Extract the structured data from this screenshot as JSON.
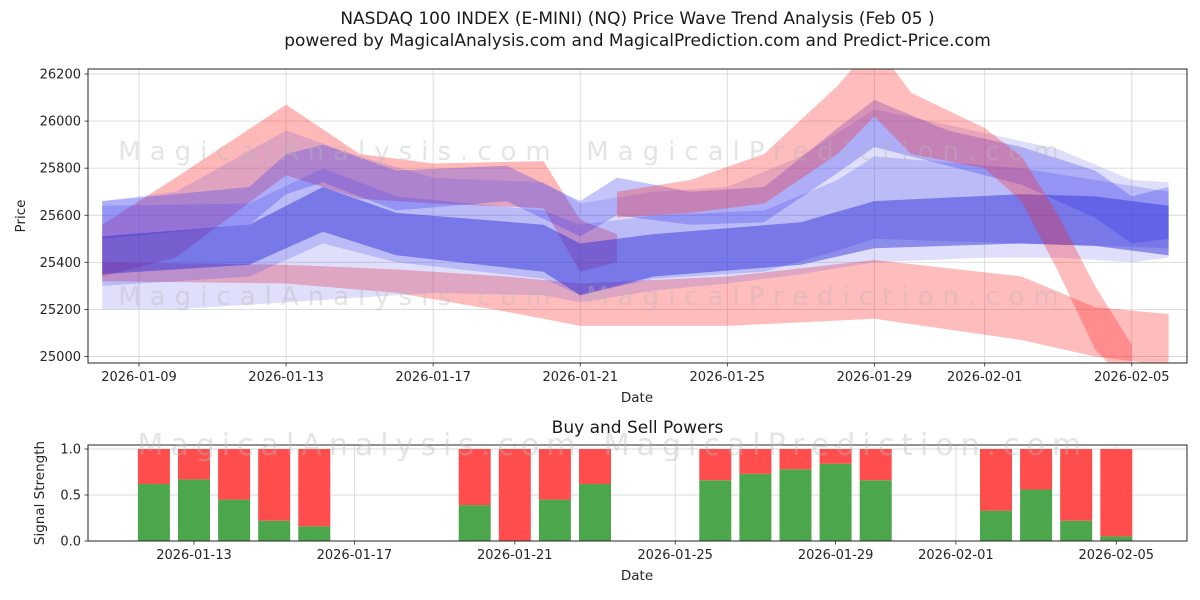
{
  "figure": {
    "title_line1": "NASDAQ 100 INDEX (E-MINI) (NQ) Price Wave Trend Analysis (Feb 05 )",
    "title_line2": "powered by MagicalAnalysis.com and MagicalPrediction.com and Predict-Price.com",
    "background": "#ffffff"
  },
  "watermarks": {
    "texts": [
      "MagicalAnalysis.com",
      "MagicalPrediction.com"
    ],
    "color": "rgba(185,185,185,0.38)"
  },
  "colors": {
    "band_red": "#ff2222",
    "band_blue_light": "#3b3bee",
    "band_blue_dark": "#2828d8",
    "bar_buy_green": "#4ca64c",
    "bar_sell_red": "#ff4d4d",
    "grid": "#d9d9d9",
    "spine": "#262626"
  },
  "chart_data": [
    {
      "type": "area",
      "name": "price-wave-chart",
      "title": "",
      "xlabel": "Date",
      "ylabel": "Price",
      "ylim": [
        24975,
        26225
      ],
      "yticks": [
        25000,
        25200,
        25400,
        25600,
        25800,
        26000,
        26200
      ],
      "xticks": [
        "2026-01-09",
        "2026-01-13",
        "2026-01-17",
        "2026-01-21",
        "2026-01-25",
        "2026-01-29",
        "2026-02-01",
        "2026-02-05"
      ],
      "grid": true,
      "legend": "none",
      "bands": [
        {
          "name": "red-left-peak",
          "color": "#ff2222",
          "opacity": 0.32,
          "points": [
            [
              "2026-01-08",
              25560,
              25340
            ],
            [
              "2026-01-10",
              25760,
              25420
            ],
            [
              "2026-01-13",
              26070,
              25770
            ],
            [
              "2026-01-15",
              25860,
              25670
            ],
            [
              "2026-01-17",
              25820,
              25650
            ],
            [
              "2026-01-20",
              25830,
              25630
            ],
            [
              "2026-01-21",
              25580,
              25360
            ],
            [
              "2026-01-22",
              25520,
              25400
            ]
          ]
        },
        {
          "name": "red-lower-band",
          "color": "#ff2222",
          "opacity": 0.3,
          "points": [
            [
              "2026-01-08",
              25400,
              25320
            ],
            [
              "2026-01-13",
              25390,
              25310
            ],
            [
              "2026-01-16",
              25370,
              25270
            ],
            [
              "2026-01-19",
              25340,
              25190
            ],
            [
              "2026-01-21",
              25310,
              25130
            ],
            [
              "2026-01-25",
              25340,
              25130
            ],
            [
              "2026-01-29",
              25410,
              25160
            ],
            [
              "2026-02-02",
              25340,
              25070
            ],
            [
              "2026-02-04",
              25210,
              25000
            ],
            [
              "2026-02-06",
              25180,
              24960
            ]
          ]
        },
        {
          "name": "blue-envelope",
          "color": "#3b3bee",
          "opacity": 0.16,
          "points": [
            [
              "2026-01-08",
              25660,
              25200
            ],
            [
              "2026-01-10",
              25700,
              25200
            ],
            [
              "2026-01-13",
              25960,
              25230
            ],
            [
              "2026-01-15",
              25850,
              25250
            ],
            [
              "2026-01-17",
              25760,
              25270
            ],
            [
              "2026-01-20",
              25740,
              25260
            ],
            [
              "2026-01-21",
              25650,
              25230
            ],
            [
              "2026-01-23",
              25700,
              25280
            ],
            [
              "2026-01-25",
              25720,
              25310
            ],
            [
              "2026-01-27",
              25850,
              25350
            ],
            [
              "2026-01-29",
              26050,
              25400
            ],
            [
              "2026-02-01",
              25950,
              25420
            ],
            [
              "2026-02-03",
              25880,
              25420
            ],
            [
              "2026-02-05",
              25750,
              25400
            ],
            [
              "2026-02-06",
              25740,
              25420
            ]
          ]
        },
        {
          "name": "blue-mid-band",
          "color": "#3b3bee",
          "opacity": 0.22,
          "points": [
            [
              "2026-01-08",
              25640,
              25300
            ],
            [
              "2026-01-12",
              25650,
              25340
            ],
            [
              "2026-01-14",
              25800,
              25480
            ],
            [
              "2026-01-16",
              25680,
              25400
            ],
            [
              "2026-01-20",
              25620,
              25330
            ],
            [
              "2026-01-21",
              25560,
              25260
            ],
            [
              "2026-01-23",
              25600,
              25330
            ],
            [
              "2026-01-26",
              25620,
              25360
            ],
            [
              "2026-01-28",
              25750,
              25450
            ],
            [
              "2026-01-29",
              25850,
              25500
            ],
            [
              "2026-02-02",
              25800,
              25480
            ],
            [
              "2026-02-06",
              25700,
              25460
            ]
          ]
        },
        {
          "name": "blue-upper-band",
          "color": "#3b3bee",
          "opacity": 0.3,
          "points": [
            [
              "2026-01-08",
              25660,
              25500
            ],
            [
              "2026-01-12",
              25720,
              25560
            ],
            [
              "2026-01-13",
              25860,
              25690
            ],
            [
              "2026-01-14",
              25900,
              25740
            ],
            [
              "2026-01-16",
              25790,
              25620
            ],
            [
              "2026-01-19",
              25810,
              25660
            ],
            [
              "2026-01-21",
              25660,
              25510
            ],
            [
              "2026-01-22",
              25760,
              25600
            ],
            [
              "2026-01-24",
              25700,
              25560
            ],
            [
              "2026-01-26",
              25720,
              25570
            ],
            [
              "2026-01-28",
              25970,
              25780
            ],
            [
              "2026-01-29",
              26090,
              25890
            ],
            [
              "2026-01-31",
              25960,
              25810
            ],
            [
              "2026-02-02",
              25890,
              25730
            ],
            [
              "2026-02-04",
              25790,
              25590
            ],
            [
              "2026-02-05",
              25680,
              25480
            ],
            [
              "2026-02-06",
              25720,
              25500
            ]
          ]
        },
        {
          "name": "blue-core-band",
          "color": "#2828d8",
          "opacity": 0.45,
          "points": [
            [
              "2026-01-08",
              25510,
              25350
            ],
            [
              "2026-01-12",
              25560,
              25390
            ],
            [
              "2026-01-14",
              25720,
              25530
            ],
            [
              "2026-01-16",
              25610,
              25430
            ],
            [
              "2026-01-20",
              25560,
              25360
            ],
            [
              "2026-01-21",
              25480,
              25260
            ],
            [
              "2026-01-23",
              25520,
              25340
            ],
            [
              "2026-01-27",
              25570,
              25390
            ],
            [
              "2026-01-29",
              25660,
              25460
            ],
            [
              "2026-02-02",
              25690,
              25480
            ],
            [
              "2026-02-04",
              25680,
              25470
            ],
            [
              "2026-02-06",
              25640,
              25430
            ]
          ]
        },
        {
          "name": "red-spike-band",
          "color": "#ff2222",
          "opacity": 0.3,
          "points": [
            [
              "2026-01-22",
              25700,
              25590
            ],
            [
              "2026-01-24",
              25750,
              25610
            ],
            [
              "2026-01-26",
              25860,
              25650
            ],
            [
              "2026-01-28",
              26150,
              25860
            ],
            [
              "2026-01-29",
              26330,
              26020
            ],
            [
              "2026-01-30",
              26120,
              25860
            ],
            [
              "2026-02-01",
              25970,
              25800
            ],
            [
              "2026-02-02",
              25850,
              25660
            ],
            [
              "2026-02-03",
              25600,
              25360
            ],
            [
              "2026-02-04",
              25300,
              25030
            ],
            [
              "2026-02-05",
              25050,
              24870
            ]
          ]
        }
      ]
    },
    {
      "type": "bar",
      "name": "buy-sell-powers-chart",
      "title": "Buy and Sell Powers",
      "xlabel": "Date",
      "ylabel": "Signal Strength",
      "ylim": [
        0,
        1.04
      ],
      "yticks": [
        0.0,
        0.5,
        1.0
      ],
      "xticks": [
        "2026-01-13",
        "2026-01-17",
        "2026-01-21",
        "2026-01-25",
        "2026-01-29",
        "2026-02-01",
        "2026-02-05"
      ],
      "grid": true,
      "stacked": true,
      "categories": [
        "2026-01-12",
        "2026-01-13",
        "2026-01-14",
        "2026-01-15",
        "2026-01-16",
        "2026-01-20",
        "2026-01-21",
        "2026-01-22",
        "2026-01-23",
        "2026-01-26",
        "2026-01-27",
        "2026-01-28",
        "2026-01-29",
        "2026-01-30",
        "2026-02-02",
        "2026-02-03",
        "2026-02-04",
        "2026-02-05"
      ],
      "series": [
        {
          "name": "Buy",
          "color": "#4ca64c",
          "values": [
            0.62,
            0.67,
            0.45,
            0.22,
            0.16,
            0.39,
            0.0,
            0.45,
            0.62,
            0.66,
            0.73,
            0.78,
            0.84,
            0.66,
            0.33,
            0.56,
            0.22,
            0.05
          ]
        },
        {
          "name": "Sell",
          "color": "#ff4d4d",
          "values": [
            0.38,
            0.33,
            0.55,
            0.78,
            0.84,
            0.61,
            1.0,
            0.55,
            0.38,
            0.34,
            0.27,
            0.22,
            0.16,
            0.34,
            0.67,
            0.44,
            0.78,
            0.95
          ]
        }
      ]
    }
  ]
}
